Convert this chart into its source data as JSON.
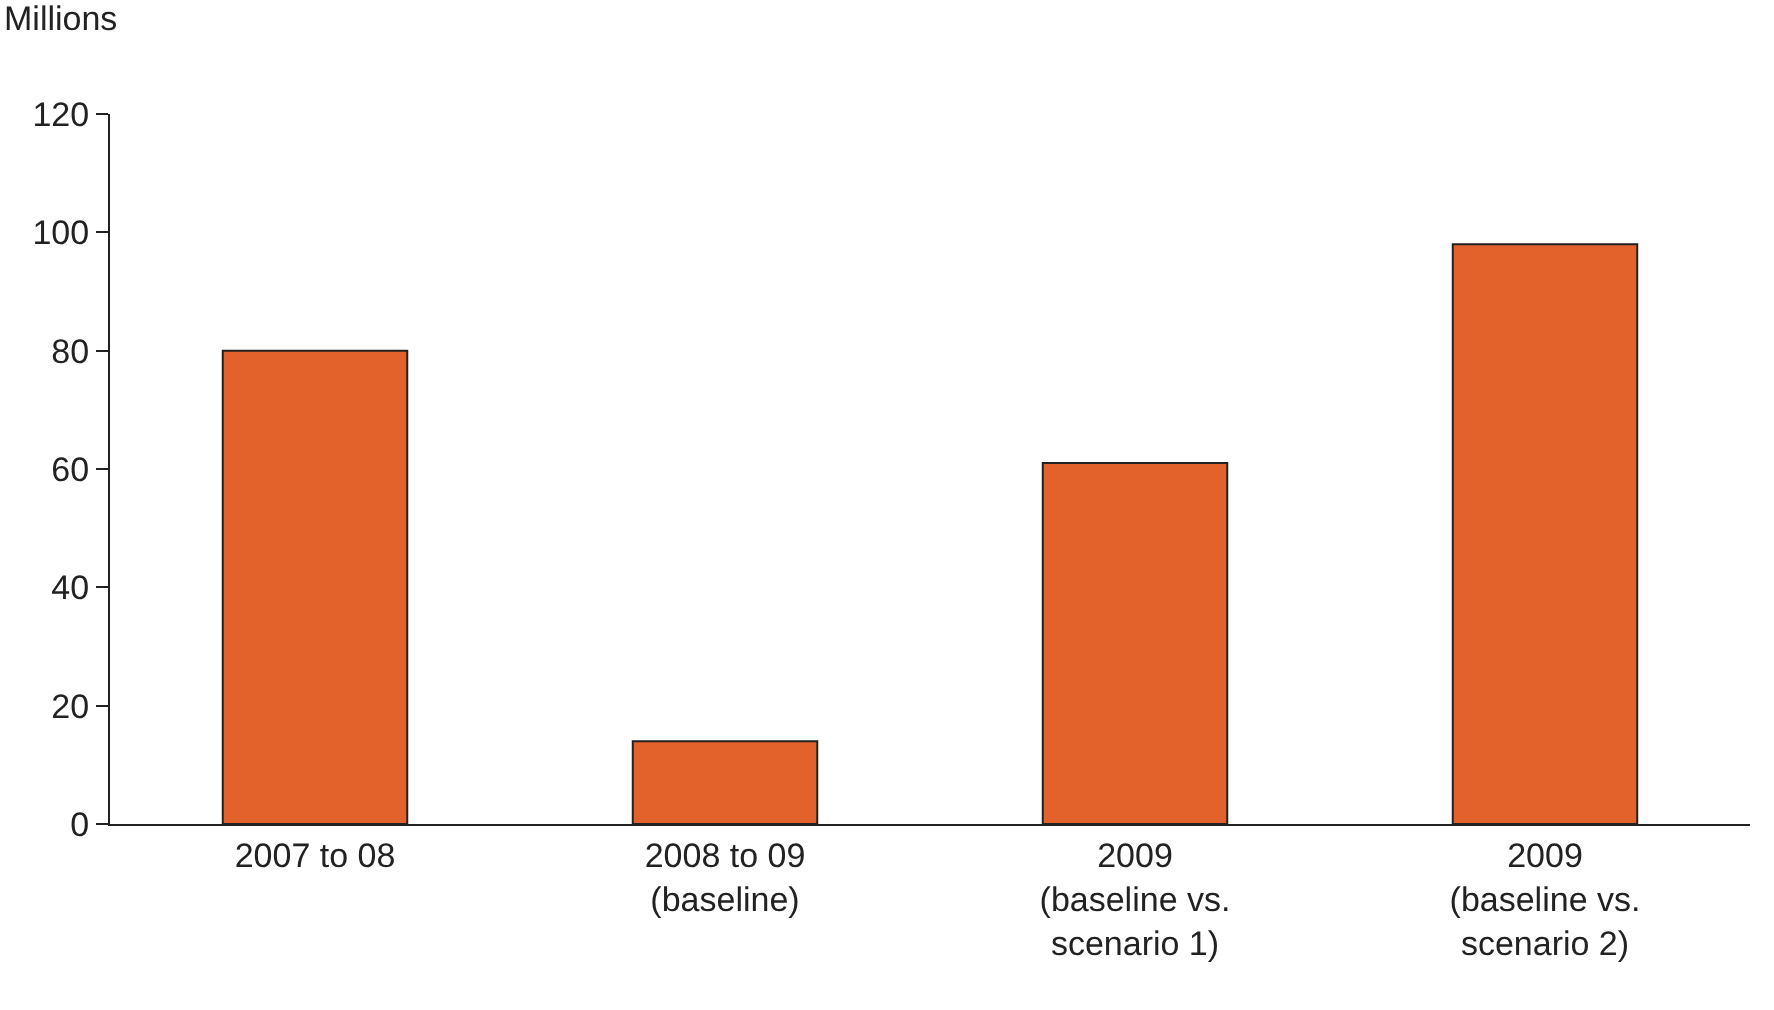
{
  "chart_data": {
    "type": "bar",
    "ylabel": "Millions",
    "categories": [
      "2007 to 08",
      "2008 to 09\n(baseline)",
      "2009\n(baseline vs.\nscenario 1)",
      "2009\n(baseline vs.\nscenario 2)"
    ],
    "values": [
      80,
      14,
      61,
      98
    ],
    "color": "#e3622b",
    "ylim": [
      0,
      120
    ],
    "yticks": [
      0,
      20,
      40,
      60,
      80,
      100,
      120
    ],
    "grid": false,
    "legend": false
  }
}
